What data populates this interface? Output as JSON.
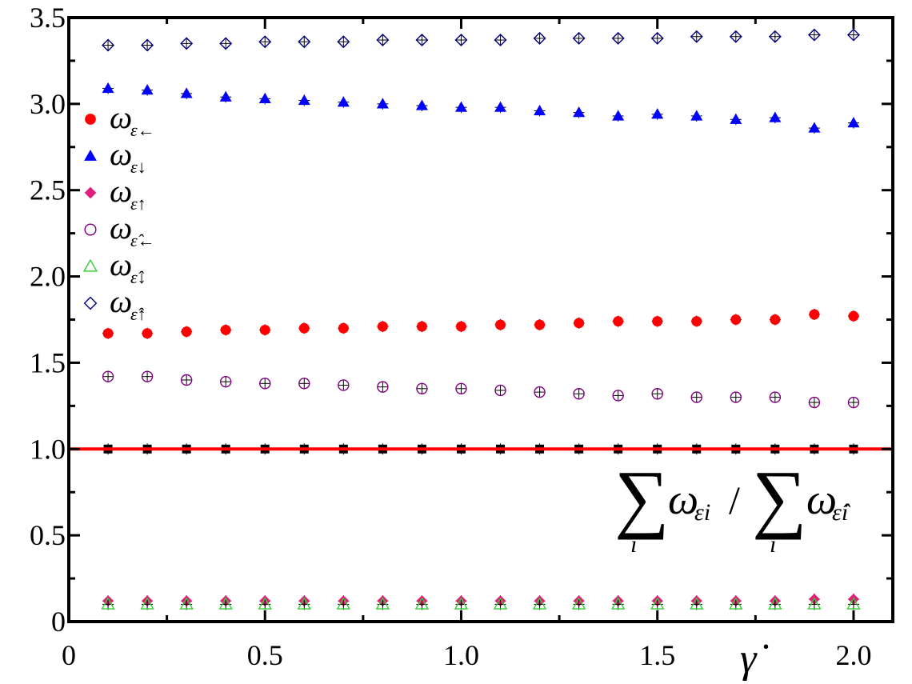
{
  "chart_data": {
    "type": "scatter",
    "title": "",
    "xlabel": "γ̇",
    "ylabel": "",
    "xlim": [
      0,
      2.1
    ],
    "ylim": [
      0,
      3.5
    ],
    "x_ticks": [
      {
        "value": 0,
        "label": "0"
      },
      {
        "value": 0.5,
        "label": "0.5"
      },
      {
        "value": 1.0,
        "label": "1.0"
      },
      {
        "value": 1.5,
        "label": "1.5"
      },
      {
        "value": 2.0,
        "label": "2.0"
      }
    ],
    "y_ticks": [
      {
        "value": 0,
        "label": "0"
      },
      {
        "value": 0.5,
        "label": "0.5"
      },
      {
        "value": 1.0,
        "label": "1.0"
      },
      {
        "value": 1.5,
        "label": "1.5"
      },
      {
        "value": 2.0,
        "label": "2.0"
      },
      {
        "value": 2.5,
        "label": "2.5"
      },
      {
        "value": 3.0,
        "label": "3.0"
      },
      {
        "value": 3.5,
        "label": "3.5"
      }
    ],
    "grid": false,
    "legend_position": "top-left",
    "x": [
      0.1,
      0.2,
      0.3,
      0.4,
      0.5,
      0.6,
      0.7,
      0.8,
      0.9,
      1.0,
      1.1,
      1.2,
      1.3,
      1.4,
      1.5,
      1.6,
      1.7,
      1.8,
      1.9,
      2.0
    ],
    "series": [
      {
        "name": "ω ε←",
        "sub": "ε←",
        "marker": "circle-filled",
        "color": "#ff0000",
        "values": [
          1.67,
          1.67,
          1.68,
          1.69,
          1.69,
          1.7,
          1.7,
          1.71,
          1.71,
          1.71,
          1.72,
          1.72,
          1.73,
          1.74,
          1.74,
          1.74,
          1.75,
          1.75,
          1.78,
          1.77
        ]
      },
      {
        "name": "ω ε↓",
        "sub": "ε↓",
        "marker": "triangle-filled",
        "color": "#0000ff",
        "values": [
          3.09,
          3.08,
          3.06,
          3.04,
          3.03,
          3.02,
          3.01,
          3.0,
          2.99,
          2.98,
          2.98,
          2.96,
          2.95,
          2.93,
          2.94,
          2.93,
          2.91,
          2.92,
          2.86,
          2.89
        ]
      },
      {
        "name": "ω ε↑",
        "sub": "ε↑",
        "marker": "diamond-filled",
        "color": "#e0207a",
        "values": [
          0.12,
          0.12,
          0.12,
          0.12,
          0.12,
          0.12,
          0.12,
          0.12,
          0.12,
          0.12,
          0.12,
          0.12,
          0.12,
          0.12,
          0.12,
          0.12,
          0.12,
          0.12,
          0.13,
          0.13
        ]
      },
      {
        "name": "ω ε̂←",
        "sub": "ε̂←",
        "marker": "circle-open",
        "color": "#800080",
        "values": [
          1.42,
          1.42,
          1.4,
          1.39,
          1.38,
          1.38,
          1.37,
          1.36,
          1.35,
          1.35,
          1.34,
          1.33,
          1.32,
          1.31,
          1.32,
          1.3,
          1.3,
          1.3,
          1.27,
          1.27
        ]
      },
      {
        "name": "ω ε̂↓",
        "sub": "ε̂↓",
        "marker": "triangle-open",
        "color": "#33cc33",
        "values": [
          0.1,
          0.1,
          0.1,
          0.1,
          0.1,
          0.1,
          0.1,
          0.1,
          0.1,
          0.1,
          0.1,
          0.1,
          0.1,
          0.1,
          0.1,
          0.1,
          0.1,
          0.1,
          0.1,
          0.1
        ]
      },
      {
        "name": "ω ε̂↑",
        "sub": "ε̂↑",
        "marker": "diamond-open",
        "color": "#000080",
        "values": [
          3.34,
          3.34,
          3.35,
          3.35,
          3.36,
          3.36,
          3.36,
          3.37,
          3.37,
          3.37,
          3.37,
          3.38,
          3.38,
          3.38,
          3.38,
          3.39,
          3.39,
          3.39,
          3.4,
          3.4
        ]
      },
      {
        "name": "Σ ω εi / Σ ω ε̂i",
        "marker": "square-filled",
        "color": "#000000",
        "in_legend": false,
        "values": [
          1.0,
          1.0,
          1.0,
          1.0,
          1.0,
          1.0,
          1.0,
          1.0,
          1.0,
          1.0,
          1.0,
          1.0,
          1.0,
          1.0,
          1.0,
          1.0,
          1.0,
          1.0,
          1.0,
          1.0
        ]
      }
    ],
    "reference_line": {
      "y": 1.0,
      "color": "#ff0000"
    },
    "annotation": {
      "sum": "∑",
      "index": "i",
      "omega": "ω",
      "sub_num": "εi",
      "sub_den": "ε̂i",
      "slash": "/"
    }
  }
}
